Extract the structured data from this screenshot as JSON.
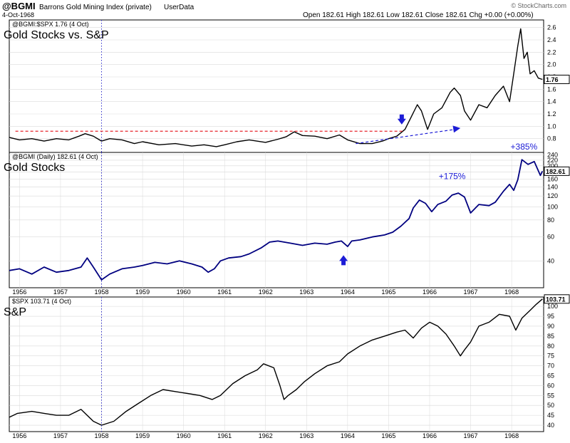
{
  "header": {
    "symbol": "@BGMI",
    "name": "Barrons Gold Mining Index (private)",
    "source": "UserData",
    "date": "4-Oct-1968",
    "ohlc": "Open 182.61   High 182.61   Low 182.61   Close 182.61   Chg +0.00 (+0.00%)",
    "watermark": "© StockCharts.com"
  },
  "colors": {
    "frame": "#000000",
    "grid": "#d9d9d9",
    "ratio_line": "#000000",
    "gold_line": "#000080",
    "spx_line": "#000000",
    "annotation_blue": "#1c1cd6",
    "resistance_red": "#e8262d",
    "marker_line": "#3333cc"
  },
  "chart_data": [
    {
      "type": "line",
      "legend": "@BGMI:$SPX 1.76 (4 Oct)",
      "title": "Gold Stocks vs. S&P",
      "last_value_label": "1.76",
      "ylim": [
        0.6,
        2.7
      ],
      "y_ticks": [
        "0.8",
        "1.0",
        "1.2",
        "1.4",
        "1.6",
        "1.8",
        "2.0",
        "2.2",
        "2.4",
        "2.6"
      ],
      "x_range": [
        1955.75,
        1968.78
      ],
      "series": [
        {
          "x": [
            1955.75,
            1956.0,
            1956.3,
            1956.6,
            1956.9,
            1957.2,
            1957.45,
            1957.6,
            1957.8,
            1958.0,
            1958.2,
            1958.5,
            1958.8,
            1959.0,
            1959.4,
            1959.8,
            1960.2,
            1960.5,
            1960.8,
            1961.0,
            1961.3,
            1961.6,
            1962.0,
            1962.3,
            1962.5,
            1962.7,
            1962.9,
            1963.2,
            1963.5,
            1963.8,
            1964.0,
            1964.3,
            1964.6,
            1964.85,
            1965.0,
            1965.2,
            1965.4,
            1965.55,
            1965.7,
            1965.8,
            1965.95,
            1966.1,
            1966.3,
            1966.5,
            1966.6,
            1966.75,
            1966.85,
            1967.0,
            1967.2,
            1967.4,
            1967.6,
            1967.8,
            1967.95,
            1968.05,
            1968.15,
            1968.22,
            1968.3,
            1968.38,
            1968.45,
            1968.55,
            1968.65,
            1968.75
          ],
          "y": [
            0.82,
            0.78,
            0.8,
            0.76,
            0.8,
            0.78,
            0.84,
            0.88,
            0.84,
            0.76,
            0.8,
            0.78,
            0.72,
            0.75,
            0.7,
            0.72,
            0.68,
            0.7,
            0.67,
            0.7,
            0.75,
            0.78,
            0.74,
            0.79,
            0.83,
            0.91,
            0.85,
            0.84,
            0.8,
            0.86,
            0.78,
            0.72,
            0.72,
            0.76,
            0.8,
            0.84,
            0.95,
            1.15,
            1.35,
            1.25,
            0.95,
            1.2,
            1.3,
            1.55,
            1.62,
            1.5,
            1.25,
            1.1,
            1.35,
            1.3,
            1.5,
            1.65,
            1.4,
            1.85,
            2.3,
            2.58,
            2.1,
            2.2,
            1.85,
            1.9,
            1.78,
            1.76
          ]
        }
      ],
      "annotations": {
        "resistance_level": 0.92,
        "resistance_x": [
          1955.9,
          1965.35
        ],
        "trend_from": [
          1964.2,
          0.72
        ],
        "trend_to": [
          1966.75,
          0.97
        ],
        "down_arrow": [
          1965.32,
          1.03
        ]
      }
    },
    {
      "type": "line",
      "legend": "@BGMI (Daily) 182.61 (4 Oct)",
      "title": "Gold Stocks",
      "last_value_label": "182.61",
      "y_scale": "log",
      "ylim": [
        26,
        245
      ],
      "y_ticks": [
        "40",
        "60",
        "80",
        "100",
        "120",
        "140",
        "160",
        "180",
        "200",
        "220",
        "240"
      ],
      "x_range": [
        1955.75,
        1968.78
      ],
      "x_ticks": [
        "1956",
        "1957",
        "1958",
        "1959",
        "1960",
        "1961",
        "1962",
        "1963",
        "1964",
        "1965",
        "1966",
        "1967",
        "1968"
      ],
      "series": [
        {
          "x": [
            1955.75,
            1956.0,
            1956.3,
            1956.6,
            1956.9,
            1957.2,
            1957.5,
            1957.65,
            1957.8,
            1958.0,
            1958.2,
            1958.5,
            1958.8,
            1959.0,
            1959.3,
            1959.6,
            1959.9,
            1960.2,
            1960.45,
            1960.6,
            1960.75,
            1960.9,
            1961.1,
            1961.4,
            1961.6,
            1961.9,
            1962.1,
            1962.3,
            1962.6,
            1962.9,
            1963.2,
            1963.5,
            1963.7,
            1963.85,
            1964.0,
            1964.1,
            1964.3,
            1964.6,
            1964.9,
            1965.1,
            1965.3,
            1965.5,
            1965.6,
            1965.75,
            1965.9,
            1966.05,
            1966.2,
            1966.4,
            1966.55,
            1966.7,
            1966.85,
            1967.0,
            1967.2,
            1967.45,
            1967.6,
            1967.8,
            1967.95,
            1968.05,
            1968.15,
            1968.25,
            1968.4,
            1968.55,
            1968.7,
            1968.75
          ],
          "y": [
            34,
            35,
            32,
            36,
            33,
            34,
            36,
            42,
            36,
            29,
            32,
            35,
            36,
            37,
            39,
            38,
            40,
            38,
            36,
            33,
            35,
            40,
            42,
            43,
            45,
            50,
            55,
            56,
            54,
            52,
            54,
            53,
            55,
            56,
            51,
            56,
            57,
            60,
            62,
            65,
            72,
            82,
            98,
            112,
            106,
            92,
            104,
            110,
            122,
            126,
            118,
            90,
            104,
            102,
            108,
            130,
            146,
            132,
            158,
            222,
            205,
            215,
            170,
            182.61
          ]
        }
      ],
      "annotations": {
        "pct_1966_label": "+175%",
        "pct_1966_at": [
          1966.55,
          160
        ],
        "pct_1968_label": "+385%",
        "pct_1968_at": [
          1968.3,
          255
        ],
        "up_arrow": [
          1963.9,
          44
        ]
      }
    },
    {
      "type": "line",
      "legend": "$SPX 103.71 (4 Oct)",
      "title": "S&P",
      "last_value_label": "103.71",
      "ylim": [
        37.5,
        104
      ],
      "y_ticks": [
        "40",
        "45",
        "50",
        "55",
        "60",
        "65",
        "70",
        "75",
        "80",
        "85",
        "90",
        "95",
        "100"
      ],
      "x_range": [
        1955.75,
        1968.78
      ],
      "x_ticks": [
        "1956",
        "1957",
        "1958",
        "1959",
        "1960",
        "1961",
        "1962",
        "1963",
        "1964",
        "1965",
        "1966",
        "1967",
        "1968"
      ],
      "series": [
        {
          "x": [
            1955.75,
            1955.95,
            1956.3,
            1956.6,
            1956.9,
            1957.2,
            1957.5,
            1957.8,
            1958.0,
            1958.3,
            1958.6,
            1958.9,
            1959.2,
            1959.5,
            1959.8,
            1960.1,
            1960.4,
            1960.7,
            1960.9,
            1961.2,
            1961.5,
            1961.8,
            1961.95,
            1962.2,
            1962.35,
            1962.45,
            1962.55,
            1962.75,
            1962.95,
            1963.2,
            1963.5,
            1963.8,
            1964.0,
            1964.3,
            1964.6,
            1964.9,
            1965.2,
            1965.4,
            1965.6,
            1965.8,
            1966.0,
            1966.2,
            1966.4,
            1966.6,
            1966.75,
            1966.85,
            1967.0,
            1967.2,
            1967.45,
            1967.7,
            1967.95,
            1968.1,
            1968.25,
            1968.45,
            1968.6,
            1968.75
          ],
          "y": [
            44,
            46,
            47,
            46,
            45,
            45,
            48,
            42,
            40,
            42,
            47,
            51,
            55,
            58,
            57,
            56,
            55,
            53,
            55,
            61,
            65,
            68,
            71,
            69,
            60,
            53,
            55,
            58,
            62,
            66,
            70,
            72,
            76,
            80,
            83,
            85,
            87,
            88,
            84,
            89,
            92,
            90,
            86,
            80,
            75,
            78,
            82,
            90,
            92,
            96,
            95,
            88,
            94,
            98,
            101,
            103.71
          ]
        }
      ],
      "annotations": {}
    }
  ],
  "vertical_marker_x": 1958.0
}
